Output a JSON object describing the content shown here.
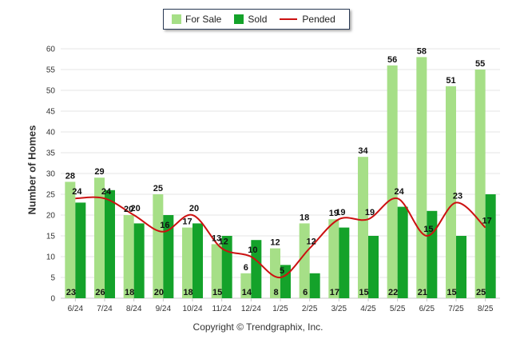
{
  "legend": {
    "for_sale": "For Sale",
    "sold": "Sold",
    "pended": "Pended"
  },
  "ylabel": "Number of Homes",
  "copyright": "Copyright © Trendgraphix, Inc.",
  "colors": {
    "for_sale": "#a6df87",
    "sold": "#14a22a",
    "pended": "#cc1111",
    "grid": "#e6e6e6",
    "axis_text": "#333333"
  },
  "chart_data": {
    "type": "bar",
    "categories": [
      "6/24",
      "7/24",
      "8/24",
      "9/24",
      "10/24",
      "11/24",
      "12/24",
      "1/25",
      "2/25",
      "3/25",
      "4/25",
      "5/25",
      "6/25",
      "7/25",
      "8/25"
    ],
    "series": [
      {
        "name": "For Sale",
        "type": "bar",
        "values": [
          28,
          29,
          20,
          25,
          17,
          13,
          6,
          12,
          18,
          19,
          34,
          56,
          58,
          51,
          55
        ]
      },
      {
        "name": "Sold",
        "type": "bar",
        "values": [
          23,
          26,
          18,
          20,
          18,
          15,
          14,
          8,
          6,
          17,
          15,
          22,
          21,
          15,
          25
        ]
      },
      {
        "name": "Pended",
        "type": "line",
        "values": [
          24,
          24,
          20,
          16,
          20,
          12,
          10,
          5,
          12,
          19,
          19,
          24,
          15,
          23,
          17
        ]
      }
    ],
    "ylabel": "Number of Homes",
    "ylim": [
      0,
      60
    ],
    "yticks": [
      0,
      5,
      10,
      15,
      20,
      25,
      30,
      35,
      40,
      45,
      50,
      55,
      60
    ],
    "grid": true,
    "legend": "top-center"
  }
}
